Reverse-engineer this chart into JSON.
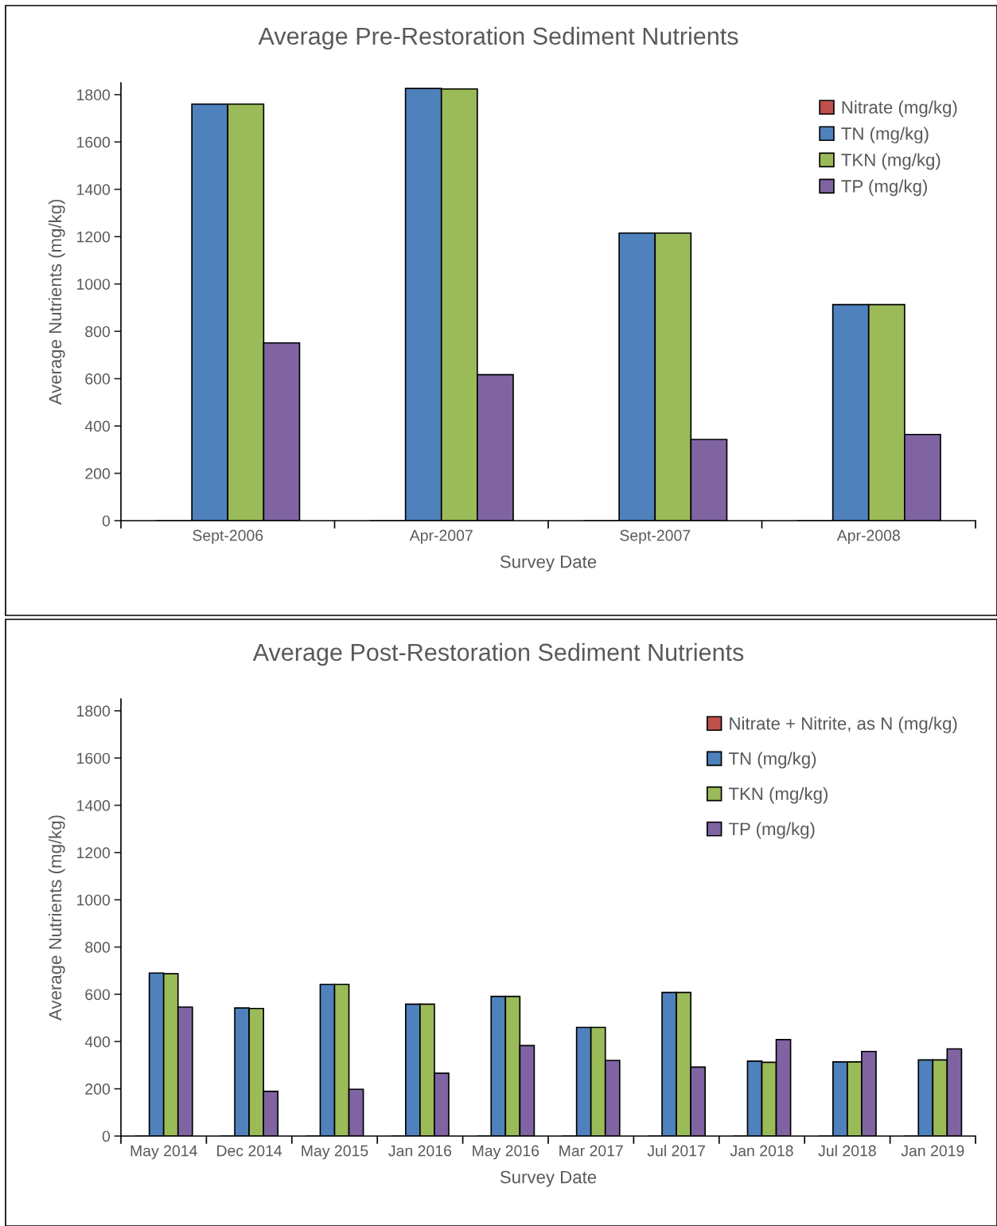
{
  "chart_data": [
    {
      "type": "bar",
      "title": "Average Pre-Restoration Sediment Nutrients",
      "xlabel": "Survey Date",
      "ylabel": "Average Nutrients (mg/kg)",
      "categories": [
        "Sept-2006",
        "Apr-2007",
        "Sept-2007",
        "Apr-2008"
      ],
      "series": [
        {
          "name": "Nitrate (mg/kg)",
          "color": "#c0504d",
          "values": [
            null,
            null,
            null,
            null
          ]
        },
        {
          "name": "TN (mg/kg)",
          "color": "#4f81bd",
          "values": [
            1760,
            1826,
            1215,
            913
          ]
        },
        {
          "name": "TKN (mg/kg)",
          "color": "#9bbb59",
          "values": [
            1760,
            1824,
            1215,
            913
          ]
        },
        {
          "name": "TP (mg/kg)",
          "color": "#8064a2",
          "values": [
            751,
            617,
            343,
            364
          ]
        }
      ],
      "ylim": [
        0,
        1850
      ],
      "yticks": [
        0,
        200,
        400,
        600,
        800,
        1000,
        1200,
        1400,
        1600,
        1800
      ],
      "legend": "top right"
    },
    {
      "type": "bar",
      "title": "Average Post-Restoration Sediment Nutrients",
      "xlabel": "Survey Date",
      "ylabel": "Average Nutrients (mg/kg)",
      "categories": [
        "May 2014",
        "Dec 2014",
        "May 2015",
        "Jan 2016",
        "May 2016",
        "Mar 2017",
        "Jul 2017",
        "Jan 2018",
        "Jul 2018",
        "Jan 2019"
      ],
      "series": [
        {
          "name": "Nitrate + Nitrite, as N (mg/kg)",
          "color": "#c0504d",
          "values": [
            null,
            null,
            null,
            null,
            null,
            null,
            null,
            null,
            null,
            null
          ]
        },
        {
          "name": "TN (mg/kg)",
          "color": "#4f81bd",
          "values": [
            690,
            542,
            642,
            558,
            591,
            460,
            608,
            317,
            314,
            322
          ]
        },
        {
          "name": "TKN (mg/kg)",
          "color": "#9bbb59",
          "values": [
            687,
            540,
            642,
            558,
            591,
            460,
            608,
            312,
            314,
            322
          ]
        },
        {
          "name": "TP (mg/kg)",
          "color": "#8064a2",
          "values": [
            546,
            189,
            198,
            266,
            383,
            320,
            292,
            408,
            358,
            369
          ]
        }
      ],
      "ylim": [
        0,
        1850
      ],
      "yticks": [
        0,
        200,
        400,
        600,
        800,
        1000,
        1200,
        1400,
        1600,
        1800
      ],
      "legend": "top right"
    }
  ]
}
